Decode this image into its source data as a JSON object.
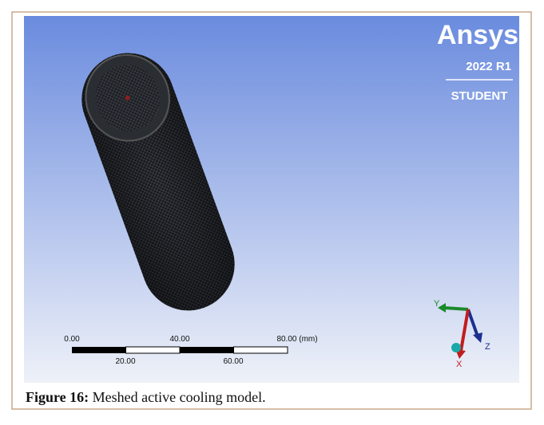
{
  "figure": {
    "viewport": {
      "logo": "Ansys",
      "version": "2022 R1",
      "license": "STUDENT",
      "scale_bar": {
        "top_labels": [
          "0.00",
          "40.00",
          "80.00 (mm)"
        ],
        "bottom_labels": [
          "20.00",
          "60.00"
        ]
      },
      "axes": {
        "y": "Y",
        "z": "Z",
        "x": "X"
      }
    },
    "caption": {
      "label": "Figure 16:",
      "text": "Meshed active cooling model."
    }
  }
}
